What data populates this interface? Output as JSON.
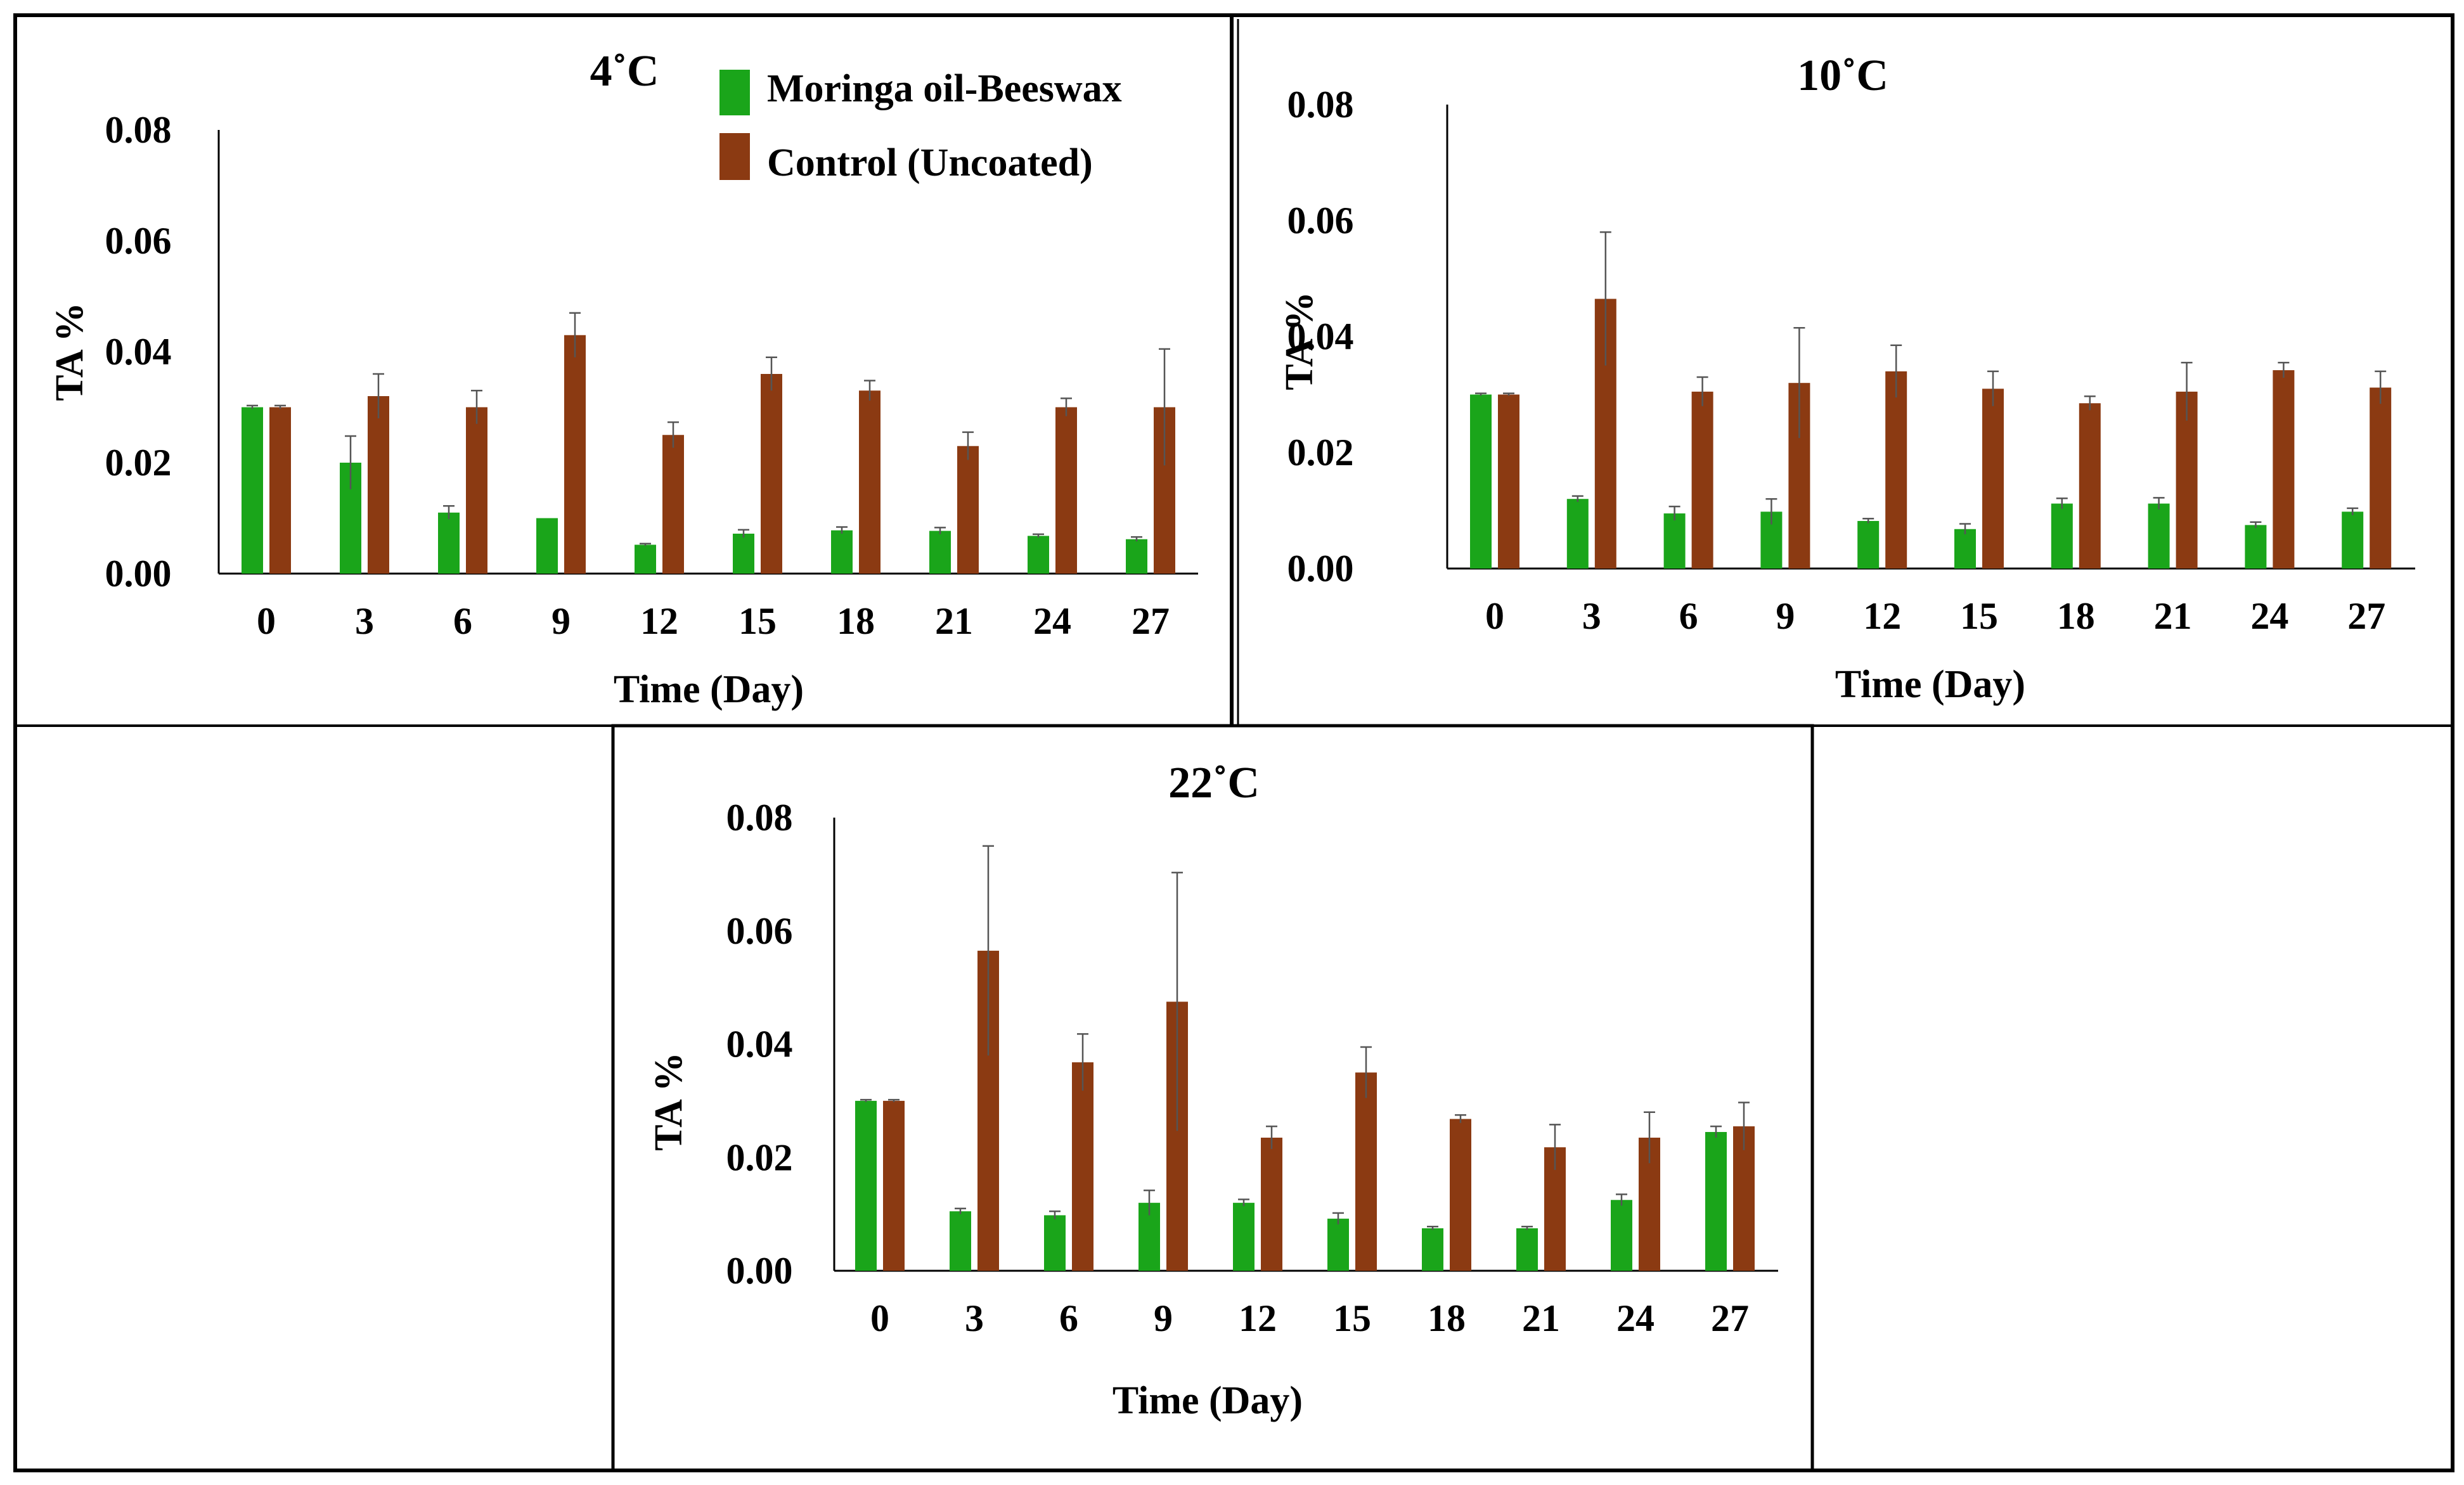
{
  "legend": {
    "series": [
      {
        "name": "Moringa oil-Beeswax",
        "color": "#1aa51a"
      },
      {
        "name": "Control (Uncoated)",
        "color": "#8b3a12"
      }
    ]
  },
  "chart_data": [
    {
      "type": "bar",
      "title": "4˚C",
      "xlabel": "Time (Day)",
      "ylabel": "TA %",
      "ylim": [
        0,
        0.08
      ],
      "yticks": [
        "0.00",
        "0.02",
        "0.04",
        "0.06",
        "0.08"
      ],
      "categories": [
        "0",
        "3",
        "6",
        "9",
        "12",
        "15",
        "18",
        "21",
        "24",
        "27"
      ],
      "series": [
        {
          "name": "Moringa oil-Beeswax",
          "values": [
            0.03,
            0.02,
            0.011,
            0.01,
            0.0052,
            0.0072,
            0.0078,
            0.0077,
            0.0068,
            0.0062
          ],
          "errors": [
            0.0003,
            0.0048,
            0.0012,
            0.0,
            0.0002,
            0.0007,
            0.0006,
            0.0006,
            0.0003,
            0.0004
          ]
        },
        {
          "name": "Control (Uncoated)",
          "values": [
            0.03,
            0.032,
            0.03,
            0.043,
            0.025,
            0.036,
            0.033,
            0.023,
            0.03,
            0.03
          ],
          "errors": [
            0.0003,
            0.004,
            0.003,
            0.004,
            0.0023,
            0.003,
            0.0018,
            0.0025,
            0.0016,
            0.0105
          ]
        }
      ]
    },
    {
      "type": "bar",
      "title": "10˚C",
      "xlabel": "Time (Day)",
      "ylabel": "TA %",
      "ylim": [
        0,
        0.08
      ],
      "yticks": [
        "0.00",
        "0.02",
        "0.04",
        "0.06",
        "0.08"
      ],
      "categories": [
        "0",
        "3",
        "6",
        "9",
        "12",
        "15",
        "18",
        "21",
        "24",
        "27"
      ],
      "series": [
        {
          "name": "Moringa oil-Beeswax",
          "values": [
            0.03,
            0.012,
            0.0095,
            0.0098,
            0.0082,
            0.0068,
            0.0112,
            0.0112,
            0.0075,
            0.0098
          ],
          "errors": [
            0.0002,
            0.0005,
            0.0012,
            0.0022,
            0.0004,
            0.0009,
            0.0009,
            0.001,
            0.0005,
            0.0006
          ]
        },
        {
          "name": "Control (Uncoated)",
          "values": [
            0.03,
            0.0465,
            0.0305,
            0.032,
            0.034,
            0.031,
            0.0285,
            0.0305,
            0.0342,
            0.0312
          ],
          "errors": [
            0.0002,
            0.0115,
            0.0025,
            0.0095,
            0.0045,
            0.003,
            0.0012,
            0.005,
            0.0013,
            0.0028
          ]
        }
      ]
    },
    {
      "type": "bar",
      "title": "22˚C",
      "xlabel": "Time (Day)",
      "ylabel": "TA %",
      "ylim": [
        0,
        0.08
      ],
      "yticks": [
        "0.00",
        "0.02",
        "0.04",
        "0.06",
        "0.08"
      ],
      "categories": [
        "0",
        "3",
        "6",
        "9",
        "12",
        "15",
        "18",
        "21",
        "24",
        "27"
      ],
      "series": [
        {
          "name": "Moringa oil-Beeswax",
          "values": [
            0.03,
            0.0105,
            0.0098,
            0.012,
            0.012,
            0.0092,
            0.0075,
            0.0075,
            0.0125,
            0.0245
          ],
          "errors": [
            0.0002,
            0.0005,
            0.0007,
            0.0022,
            0.0006,
            0.001,
            0.0003,
            0.0003,
            0.001,
            0.001
          ]
        },
        {
          "name": "Control (Uncoated)",
          "values": [
            0.03,
            0.0565,
            0.0368,
            0.0475,
            0.0235,
            0.035,
            0.0268,
            0.0218,
            0.0235,
            0.0255
          ],
          "errors": [
            0.0002,
            0.0185,
            0.005,
            0.0228,
            0.002,
            0.0045,
            0.0007,
            0.004,
            0.0045,
            0.0042
          ]
        }
      ]
    }
  ]
}
